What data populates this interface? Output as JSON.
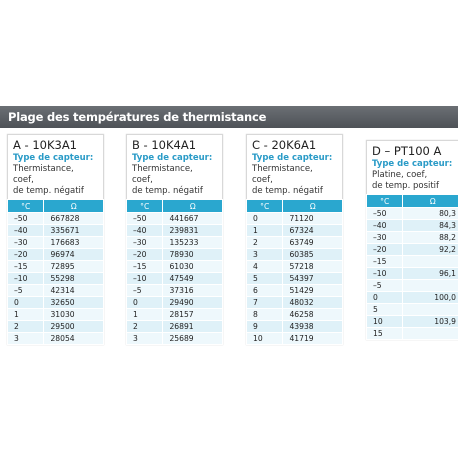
{
  "header": {
    "title": "Plage des températures de thermistance"
  },
  "columns": {
    "celsius": "°C",
    "ohm": "Ω"
  },
  "sensors": [
    {
      "title": "A - 10K3A1",
      "sensor_type_label": "Type de capteur:",
      "desc": [
        "Thermistance,",
        "coef,",
        "de temp. négatif"
      ],
      "rows": [
        [
          "–50",
          "667828"
        ],
        [
          "–40",
          "335671"
        ],
        [
          "–30",
          "176683"
        ],
        [
          "–20",
          "96974"
        ],
        [
          "–15",
          "72895"
        ],
        [
          "–10",
          "55298"
        ],
        [
          "–5",
          "42314"
        ],
        [
          "0",
          "32650"
        ],
        [
          "1",
          "31030"
        ],
        [
          "2",
          "29500"
        ],
        [
          "3",
          "28054"
        ]
      ]
    },
    {
      "title": "B - 10K4A1",
      "sensor_type_label": "Type de capteur:",
      "desc": [
        "Thermistance,",
        "coef,",
        "de temp. négatif"
      ],
      "rows": [
        [
          "–50",
          "441667"
        ],
        [
          "–40",
          "239831"
        ],
        [
          "–30",
          "135233"
        ],
        [
          "–20",
          "78930"
        ],
        [
          "–15",
          "61030"
        ],
        [
          "–10",
          "47549"
        ],
        [
          "–5",
          "37316"
        ],
        [
          "0",
          "29490"
        ],
        [
          "1",
          "28157"
        ],
        [
          "2",
          "26891"
        ],
        [
          "3",
          "25689"
        ]
      ]
    },
    {
      "title": "C - 20K6A1",
      "sensor_type_label": "Type de capteur:",
      "desc": [
        "Thermistance,",
        "coef,",
        "de temp. négatif"
      ],
      "rows": [
        [
          "0",
          "71120"
        ],
        [
          "1",
          "67324"
        ],
        [
          "2",
          "63749"
        ],
        [
          "3",
          "60385"
        ],
        [
          "4",
          "57218"
        ],
        [
          "5",
          "54397"
        ],
        [
          "6",
          "51429"
        ],
        [
          "7",
          "48032"
        ],
        [
          "8",
          "46258"
        ],
        [
          "9",
          "43938"
        ],
        [
          "10",
          "41719"
        ]
      ]
    },
    {
      "title": "D – PT100 A",
      "sensor_type_label": "Type de capteur:",
      "desc": [
        "Platine, coef,",
        "de temp. positif"
      ],
      "rows": [
        [
          "–50",
          "80,3"
        ],
        [
          "–40",
          "84,3"
        ],
        [
          "–30",
          "88,2"
        ],
        [
          "–20",
          "92,2"
        ],
        [
          "–15",
          ""
        ],
        [
          "–10",
          "96,1"
        ],
        [
          "–5",
          ""
        ],
        [
          "0",
          "100,0"
        ],
        [
          "5",
          ""
        ],
        [
          "10",
          "103,9"
        ],
        [
          "15",
          ""
        ]
      ]
    }
  ]
}
